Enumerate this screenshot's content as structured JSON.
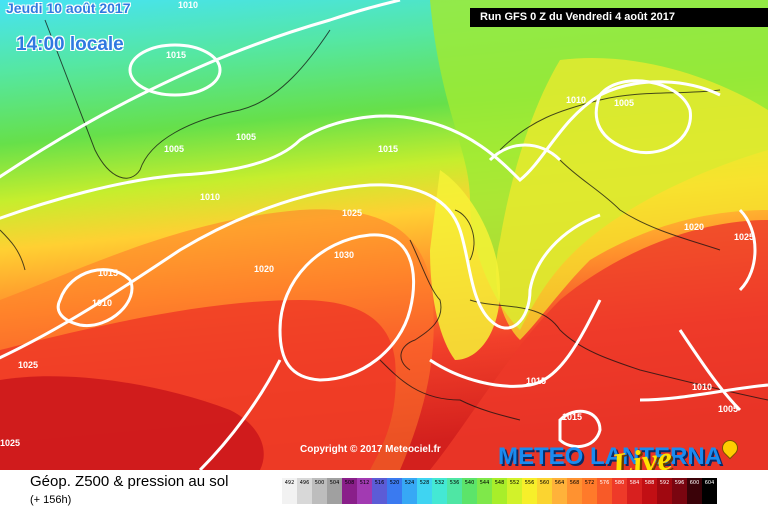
{
  "header": {
    "date_text": "Jeudi 10 août 2017",
    "time_text": "14:00 locale",
    "run_text": "Run GFS 0 Z du Vendredi 4 août 2017"
  },
  "map": {
    "isobar_labels": [
      "1010",
      "1015",
      "1005",
      "1005",
      "1010",
      "1015",
      "1025",
      "1030",
      "1020",
      "1015",
      "1010",
      "1025",
      "1025",
      "1010",
      "1005",
      "1020",
      "1025",
      "1015",
      "1015",
      "1010",
      "1005"
    ],
    "copyright": "Copyright © 2017 Meteociel.fr",
    "brand_text": "METEO LANTERNA",
    "brand_live": "Live",
    "colors": {
      "cyan": "#3fe6f2",
      "green": "#4fe04a",
      "lime": "#a8ee2a",
      "yellow": "#f7ef2a",
      "orange": "#ffb23a",
      "red": "#f23a2a",
      "darkred": "#c20f14"
    }
  },
  "legend": {
    "title": "Géop. Z500 & pression au sol",
    "subtitle": "(+ 156h)",
    "scale_values": [
      "492",
      "496",
      "500",
      "504",
      "508",
      "512",
      "516",
      "520",
      "524",
      "528",
      "532",
      "536",
      "540",
      "544",
      "548",
      "552",
      "556",
      "560",
      "564",
      "568",
      "572",
      "576",
      "580",
      "584",
      "588",
      "592",
      "596",
      "600",
      "604"
    ]
  }
}
